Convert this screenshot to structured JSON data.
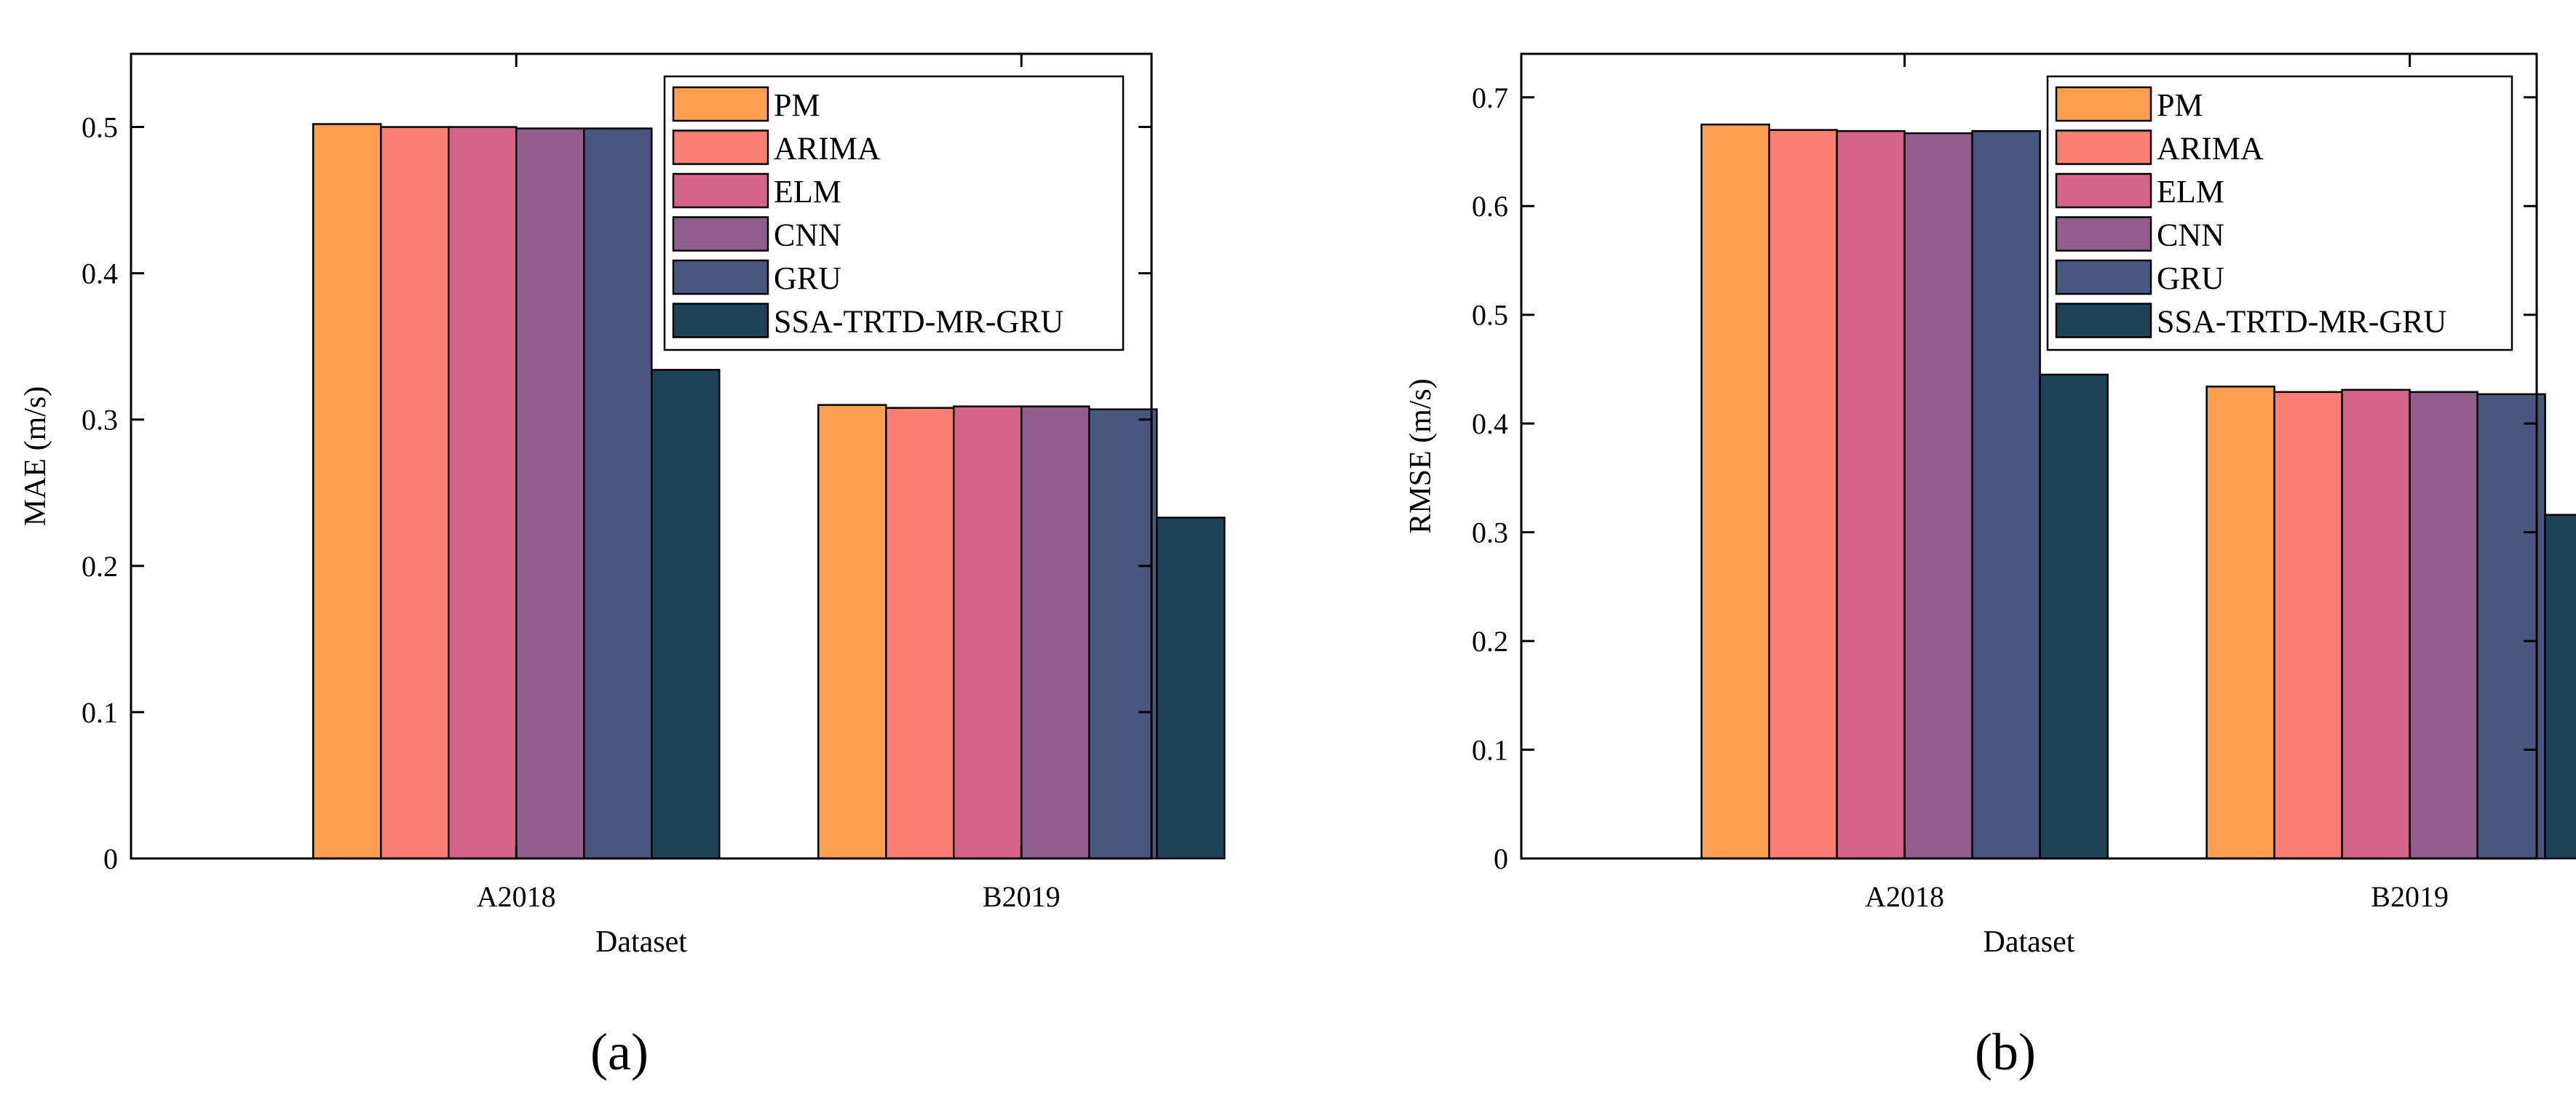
{
  "chart_data": [
    {
      "type": "bar",
      "panel_label": "(a)",
      "xlabel": "Dataset",
      "ylabel": "MAE (m/s)",
      "categories": [
        "A2018",
        "B2019"
      ],
      "ylim": [
        0,
        0.55
      ],
      "yticks": [
        0,
        0.1,
        0.2,
        0.3,
        0.4,
        0.5
      ],
      "ytick_labels": [
        "0",
        "0.1",
        "0.2",
        "0.3",
        "0.4",
        "0.5"
      ],
      "legend_position": "top-right",
      "series": [
        {
          "name": "PM",
          "color": "#FCA050",
          "values": [
            0.502,
            0.31
          ]
        },
        {
          "name": "ARIMA",
          "color": "#FB7E72",
          "values": [
            0.5,
            0.308
          ]
        },
        {
          "name": "ELM",
          "color": "#D6648A",
          "values": [
            0.5,
            0.309
          ]
        },
        {
          "name": "CNN",
          "color": "#925E90",
          "values": [
            0.499,
            0.309
          ]
        },
        {
          "name": "GRU",
          "color": "#47577E",
          "values": [
            0.499,
            0.307
          ]
        },
        {
          "name": "SSA-TRTD-MR-GRU",
          "color": "#1C4456",
          "values": [
            0.334,
            0.233
          ]
        }
      ]
    },
    {
      "type": "bar",
      "panel_label": "(b)",
      "xlabel": "Dataset",
      "ylabel": "RMSE (m/s)",
      "categories": [
        "A2018",
        "B2019"
      ],
      "ylim": [
        0,
        0.74
      ],
      "yticks": [
        0,
        0.1,
        0.2,
        0.3,
        0.4,
        0.5,
        0.6,
        0.7
      ],
      "ytick_labels": [
        "0",
        "0.1",
        "0.2",
        "0.3",
        "0.4",
        "0.5",
        "0.6",
        "0.7"
      ],
      "legend_position": "top-right",
      "series": [
        {
          "name": "PM",
          "color": "#FCA050",
          "values": [
            0.675,
            0.434
          ]
        },
        {
          "name": "ARIMA",
          "color": "#FB7E72",
          "values": [
            0.67,
            0.429
          ]
        },
        {
          "name": "ELM",
          "color": "#D6648A",
          "values": [
            0.669,
            0.431
          ]
        },
        {
          "name": "CNN",
          "color": "#925E90",
          "values": [
            0.667,
            0.429
          ]
        },
        {
          "name": "GRU",
          "color": "#47577E",
          "values": [
            0.669,
            0.427
          ]
        },
        {
          "name": "SSA-TRTD-MR-GRU",
          "color": "#1C4456",
          "values": [
            0.445,
            0.316
          ]
        }
      ]
    }
  ]
}
